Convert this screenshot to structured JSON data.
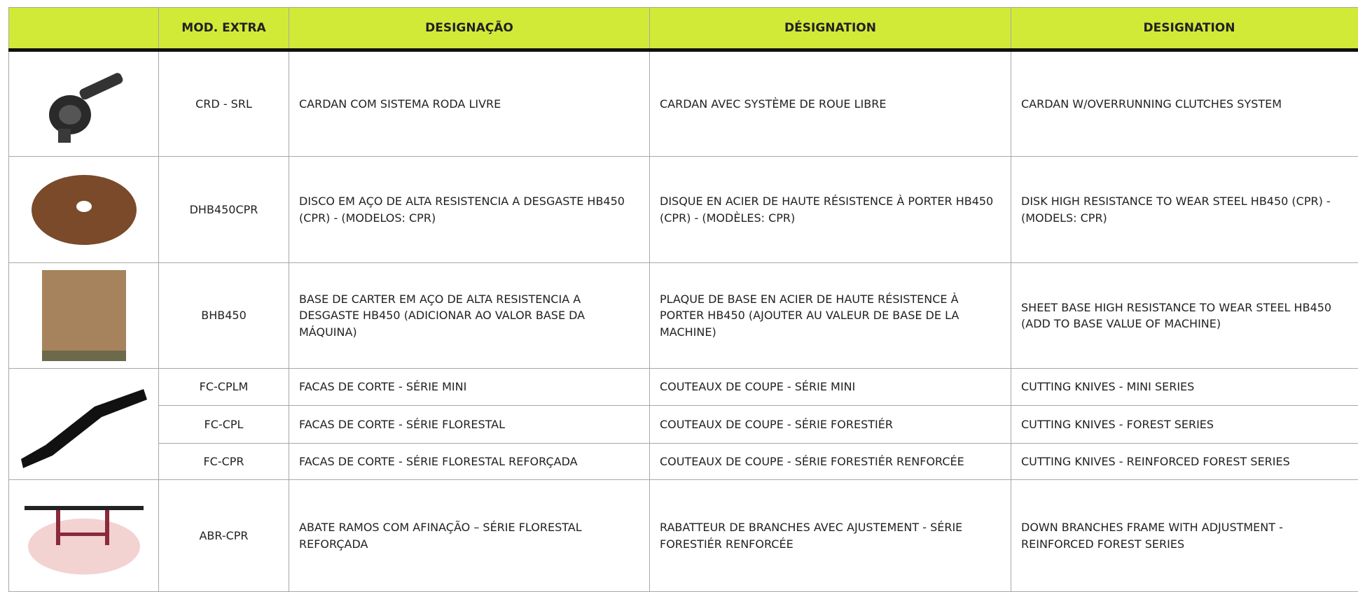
{
  "table": {
    "headers": [
      "MOD. EXTRA",
      "DESIGNAÇÃO",
      "DÉSIGNATION",
      "DESIGNATION"
    ],
    "rows": [
      {
        "code": "CRD - SRL",
        "pt": "CARDAN COM SISTEMA RODA LIVRE",
        "fr": "CARDAN AVEC SYSTÈME DE ROUE LIBRE",
        "en": "CARDAN W/OVERRUNNING CLUTCHES SYSTEM"
      },
      {
        "code": "DHB450CPR",
        "pt": "DISCO EM AÇO DE ALTA RESISTENCIA A DESGASTE HB450 (CPR) - (MODELOS: CPR)",
        "fr": "DISQUE EN ACIER DE HAUTE RÉSISTENCE À PORTER HB450 (CPR) - (MODÈLES: CPR)",
        "en": "DISK HIGH RESISTANCE TO WEAR STEEL HB450 (CPR) - (MODELS: CPR)"
      },
      {
        "code": "BHB450",
        "pt": "BASE DE CARTER EM AÇO DE ALTA RESISTENCIA A DESGASTE HB450 (ADICIONAR AO VALOR BASE DA MÁQUINA)",
        "fr": "PLAQUE DE BASE EN ACIER DE HAUTE RÉSISTENCE À PORTER HB450 (AJOUTER AU VALEUR DE BASE DE LA MACHINE)",
        "en": "SHEET BASE HIGH RESISTANCE TO WEAR STEEL HB450 (ADD TO BASE VALUE OF MACHINE)"
      },
      {
        "code": "FC-CPLM",
        "pt": "FACAS DE CORTE - SÉRIE MINI",
        "fr": "COUTEAUX DE COUPE - SÉRIE MINI",
        "en": "CUTTING KNIVES - MINI SERIES"
      },
      {
        "code": "FC-CPL",
        "pt": "FACAS DE CORTE - SÉRIE FLORESTAL",
        "fr": "COUTEAUX DE COUPE - SÉRIE FORESTIÉR",
        "en": "CUTTING KNIVES - FOREST SERIES"
      },
      {
        "code": "FC-CPR",
        "pt": "FACAS DE CORTE - SÉRIE FLORESTAL REFORÇADA",
        "fr": "COUTEAUX DE COUPE - SÉRIE FORESTIÉR RENFORCÉE",
        "en": "CUTTING KNIVES - REINFORCED FOREST SERIES"
      },
      {
        "code": "ABR-CPR",
        "pt": "ABATE RAMOS COM AFINAÇÃO – SÉRIE FLORESTAL REFORÇADA",
        "fr": "RABATTEUR DE BRANCHES AVEC AJUSTEMENT - SÉRIE FORESTIÉR RENFORCÉE",
        "en": "DOWN BRANCHES FRAME WITH ADJUSTMENT - REINFORCED FOREST SERIES"
      }
    ]
  }
}
